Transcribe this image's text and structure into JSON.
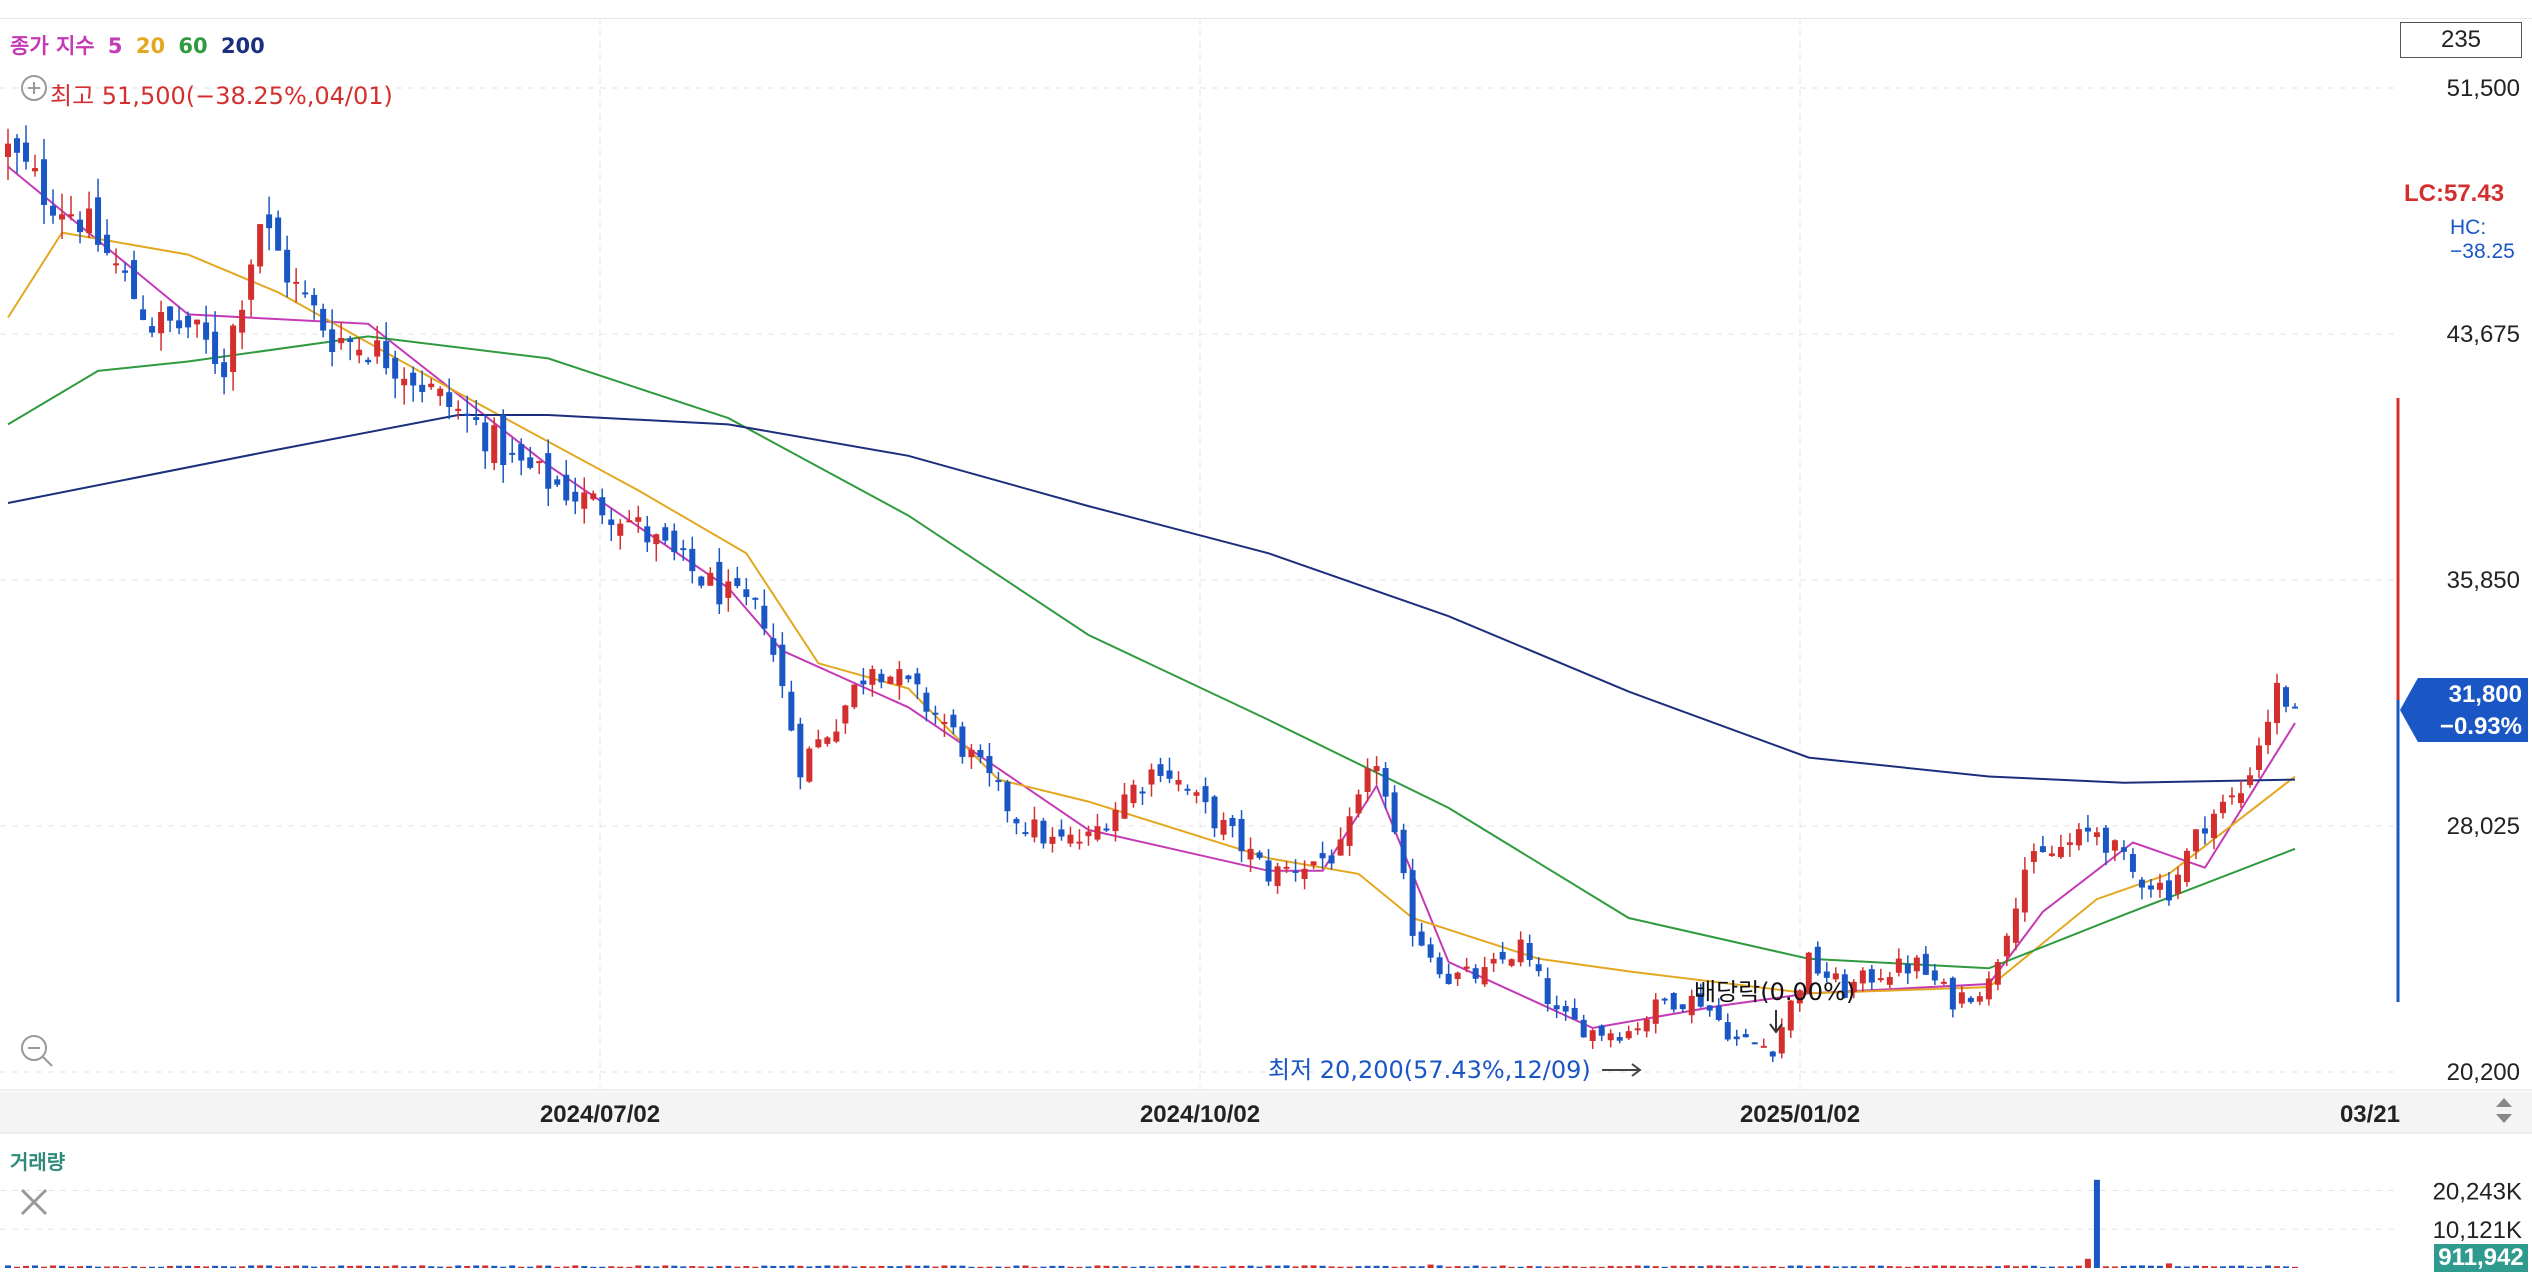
{
  "header": {
    "ma_legend": {
      "label": "종가 지수",
      "periods": [
        {
          "label": "5",
          "color": "#c43ab5"
        },
        {
          "label": "20",
          "color": "#e3a820"
        },
        {
          "label": "60",
          "color": "#2f9a3e"
        },
        {
          "label": "200",
          "color": "#1c2f7c"
        }
      ]
    },
    "candle_count": "235"
  },
  "price_panel": {
    "max_annotation": "최고 51,500(−38.25%,04/01)",
    "min_annotation": "최저 20,200(57.43%,12/09)",
    "dividend_annotation": "배당락(0.00%)",
    "lc_label": "LC:57.43",
    "hc_label": "HC:−38.25",
    "current_price": "31,800",
    "current_change": "−0.93%",
    "y_ticks": [
      "51,500",
      "43,675",
      "35,850",
      "28,025",
      "20,200"
    ],
    "x_ticks": [
      "2024/07/02",
      "2024/10/02",
      "2025/01/02",
      "03/21"
    ]
  },
  "volume_panel": {
    "label": "거래량",
    "y_ticks": [
      "20,243K",
      "10,121K"
    ],
    "current_volume": "911,942"
  },
  "colors": {
    "up": "#d32f2f",
    "down": "#1a56c4",
    "ma5": "#c43ab5",
    "ma20": "#e3a820",
    "ma60": "#2f9a3e",
    "ma200": "#1c2f7c"
  },
  "chart_data": {
    "type": "candlestick",
    "ylim": [
      20200,
      51500
    ],
    "y_ticks": [
      51500,
      43675,
      35850,
      28025,
      20200
    ],
    "x_ticks": [
      "2024/07/02",
      "2024/10/02",
      "2025/01/02",
      "03/21"
    ],
    "max": {
      "value": 51500,
      "change_pct": -38.25,
      "date": "04/01"
    },
    "min": {
      "value": 20200,
      "change_pct": 57.43,
      "date": "12/09"
    },
    "last": {
      "value": 31800,
      "change_pct": -0.93
    },
    "close_path": [
      [
        0,
        49500
      ],
      [
        4,
        48200
      ],
      [
        8,
        47400
      ],
      [
        12,
        45800
      ],
      [
        16,
        44000
      ],
      [
        20,
        43900
      ],
      [
        24,
        42700
      ],
      [
        28,
        47300
      ],
      [
        32,
        45100
      ],
      [
        36,
        43600
      ],
      [
        40,
        43300
      ],
      [
        44,
        42600
      ],
      [
        48,
        41600
      ],
      [
        52,
        40800
      ],
      [
        56,
        39600
      ],
      [
        60,
        39000
      ],
      [
        64,
        38400
      ],
      [
        68,
        38000
      ],
      [
        72,
        37000
      ],
      [
        76,
        36100
      ],
      [
        80,
        35300
      ],
      [
        84,
        34700
      ],
      [
        88,
        30000
      ],
      [
        92,
        31400
      ],
      [
        96,
        33300
      ],
      [
        100,
        32400
      ],
      [
        104,
        31300
      ],
      [
        108,
        29800
      ],
      [
        112,
        28300
      ],
      [
        116,
        27500
      ],
      [
        120,
        27600
      ],
      [
        124,
        29000
      ],
      [
        128,
        30000
      ],
      [
        132,
        28800
      ],
      [
        136,
        27700
      ],
      [
        140,
        26500
      ],
      [
        144,
        26800
      ],
      [
        148,
        27200
      ],
      [
        152,
        30200
      ],
      [
        156,
        24800
      ],
      [
        160,
        23200
      ],
      [
        164,
        23300
      ],
      [
        168,
        24200
      ],
      [
        172,
        22000
      ],
      [
        176,
        21500
      ],
      [
        180,
        21500
      ],
      [
        184,
        22500
      ],
      [
        188,
        22500
      ],
      [
        192,
        21200
      ],
      [
        196,
        21000
      ],
      [
        200,
        23700
      ],
      [
        204,
        22800
      ],
      [
        208,
        23400
      ],
      [
        212,
        23600
      ],
      [
        216,
        22500
      ],
      [
        220,
        23000
      ],
      [
        224,
        26700
      ],
      [
        228,
        27300
      ],
      [
        232,
        27900
      ],
      [
        236,
        26500
      ],
      [
        240,
        26000
      ],
      [
        244,
        28200
      ],
      [
        248,
        29100
      ],
      [
        252,
        32300
      ],
      [
        254,
        31800
      ]
    ],
    "ma_series": [
      {
        "name": "5",
        "path": [
          [
            0,
            49000
          ],
          [
            20,
            44300
          ],
          [
            40,
            44000
          ],
          [
            60,
            39500
          ],
          [
            80,
            35600
          ],
          [
            86,
            33600
          ],
          [
            100,
            31800
          ],
          [
            120,
            27900
          ],
          [
            140,
            26600
          ],
          [
            146,
            26600
          ],
          [
            152,
            29300
          ],
          [
            160,
            23700
          ],
          [
            176,
            21600
          ],
          [
            190,
            22300
          ],
          [
            200,
            22700
          ],
          [
            220,
            23000
          ],
          [
            226,
            25300
          ],
          [
            236,
            27500
          ],
          [
            244,
            26700
          ],
          [
            254,
            31300
          ]
        ]
      },
      {
        "name": "20",
        "path": [
          [
            0,
            44200
          ],
          [
            6,
            46900
          ],
          [
            20,
            46200
          ],
          [
            30,
            45000
          ],
          [
            50,
            41800
          ],
          [
            70,
            38700
          ],
          [
            82,
            36700
          ],
          [
            90,
            33200
          ],
          [
            100,
            32400
          ],
          [
            110,
            29500
          ],
          [
            120,
            28800
          ],
          [
            140,
            27000
          ],
          [
            150,
            26500
          ],
          [
            156,
            25100
          ],
          [
            170,
            23800
          ],
          [
            180,
            23400
          ],
          [
            200,
            22700
          ],
          [
            220,
            22900
          ],
          [
            232,
            25700
          ],
          [
            240,
            26500
          ],
          [
            254,
            29600
          ]
        ]
      },
      {
        "name": "60",
        "path": [
          [
            0,
            40800
          ],
          [
            10,
            42500
          ],
          [
            20,
            42800
          ],
          [
            40,
            43600
          ],
          [
            60,
            42900
          ],
          [
            80,
            41000
          ],
          [
            100,
            37900
          ],
          [
            120,
            34100
          ],
          [
            140,
            31400
          ],
          [
            160,
            28600
          ],
          [
            180,
            25100
          ],
          [
            200,
            23800
          ],
          [
            220,
            23500
          ],
          [
            235,
            25200
          ],
          [
            254,
            27300
          ]
        ]
      },
      {
        "name": "200",
        "path": [
          [
            0,
            38300
          ],
          [
            30,
            40000
          ],
          [
            50,
            41100
          ],
          [
            60,
            41100
          ],
          [
            80,
            40800
          ],
          [
            100,
            39800
          ],
          [
            120,
            38200
          ],
          [
            140,
            36700
          ],
          [
            160,
            34700
          ],
          [
            180,
            32300
          ],
          [
            200,
            30200
          ],
          [
            220,
            29600
          ],
          [
            235,
            29400
          ],
          [
            254,
            29500
          ]
        ]
      }
    ],
    "volume": {
      "ylim": [
        0,
        24000000
      ],
      "ticks": [
        20243000,
        10121000
      ],
      "spikes": [
        [
          158,
          900000
        ],
        [
          222,
          700000
        ],
        [
          231,
          2400000
        ],
        [
          232,
          23000000
        ],
        [
          240,
          1200000
        ]
      ],
      "last": 911942
    }
  }
}
